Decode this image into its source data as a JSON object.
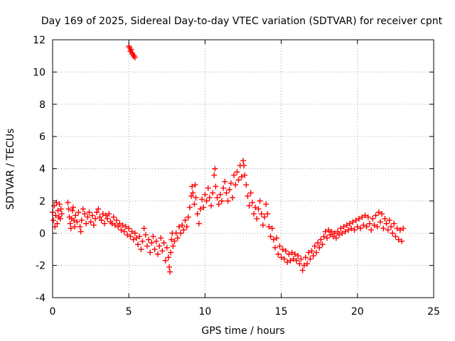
{
  "chart_data": {
    "type": "scatter",
    "title": "Day 169 of 2025, Sidereal Day-to-day VTEC variation (SDTVAR) for receiver cpnt",
    "xlabel": "GPS time / hours",
    "ylabel": "SDTVAR / TECUs",
    "xlim": [
      0,
      25
    ],
    "ylim": [
      -4,
      12
    ],
    "xticks": [
      0,
      5,
      10,
      15,
      20,
      25
    ],
    "yticks": [
      -4,
      -2,
      0,
      2,
      4,
      6,
      8,
      10,
      12
    ],
    "grid": true,
    "marker": "+",
    "colors": {
      "series": "#ff0000",
      "grid": "#a0a0a0",
      "axis": "#000000"
    },
    "series": [
      {
        "name": "SDTVAR",
        "points": [
          [
            0.0,
            1.3
          ],
          [
            0.05,
            0.8
          ],
          [
            0.1,
            1.7
          ],
          [
            0.15,
            0.4
          ],
          [
            0.2,
            1.1
          ],
          [
            0.25,
            1.9
          ],
          [
            0.3,
            0.6
          ],
          [
            0.35,
            1.4
          ],
          [
            0.4,
            1.0
          ],
          [
            0.45,
            1.8
          ],
          [
            0.5,
            0.9
          ],
          [
            0.55,
            1.5
          ],
          [
            0.6,
            1.2
          ],
          [
            1.0,
            1.9
          ],
          [
            1.05,
            1.5
          ],
          [
            1.1,
            1.0
          ],
          [
            1.15,
            0.6
          ],
          [
            1.2,
            0.3
          ],
          [
            1.25,
            0.9
          ],
          [
            1.3,
            1.4
          ],
          [
            1.35,
            1.6
          ],
          [
            1.4,
            0.8
          ],
          [
            1.45,
            0.4
          ],
          [
            1.5,
            1.1
          ],
          [
            1.6,
            0.7
          ],
          [
            1.7,
            1.3
          ],
          [
            1.8,
            0.4
          ],
          [
            1.85,
            0.1
          ],
          [
            1.9,
            0.8
          ],
          [
            2.0,
            1.5
          ],
          [
            2.1,
            1.2
          ],
          [
            2.2,
            0.6
          ],
          [
            2.3,
            1.0
          ],
          [
            2.4,
            1.3
          ],
          [
            2.5,
            0.7
          ],
          [
            2.6,
            1.1
          ],
          [
            2.7,
            0.5
          ],
          [
            2.8,
            0.9
          ],
          [
            2.9,
            1.3
          ],
          [
            3.0,
            1.5
          ],
          [
            3.1,
            1.0
          ],
          [
            3.2,
            0.8
          ],
          [
            3.3,
            1.2
          ],
          [
            3.4,
            0.6
          ],
          [
            3.5,
            1.1
          ],
          [
            3.6,
            0.9
          ],
          [
            3.7,
            1.2
          ],
          [
            3.8,
            0.7
          ],
          [
            3.9,
            0.6
          ],
          [
            4.0,
            1.0
          ],
          [
            4.1,
            0.5
          ],
          [
            4.2,
            0.8
          ],
          [
            4.3,
            0.4
          ],
          [
            4.4,
            0.6
          ],
          [
            4.5,
            0.2
          ],
          [
            4.6,
            0.5
          ],
          [
            4.7,
            0.1
          ],
          [
            4.8,
            0.4
          ],
          [
            4.9,
            -0.1
          ],
          [
            5.0,
            0.3
          ],
          [
            5.1,
            -0.2
          ],
          [
            5.2,
            0.1
          ],
          [
            5.3,
            -0.4
          ],
          [
            5.4,
            0.0
          ],
          [
            5.5,
            -0.3
          ],
          [
            5.6,
            -0.7
          ],
          [
            5.7,
            -0.2
          ],
          [
            5.8,
            -1.0
          ],
          [
            5.9,
            -0.5
          ],
          [
            6.0,
            0.3
          ],
          [
            6.1,
            -0.1
          ],
          [
            6.2,
            -0.8
          ],
          [
            6.3,
            -0.4
          ],
          [
            6.4,
            -1.2
          ],
          [
            6.5,
            -0.6
          ],
          [
            6.6,
            -0.2
          ],
          [
            6.7,
            -1.0
          ],
          [
            6.8,
            -0.5
          ],
          [
            6.9,
            -1.3
          ],
          [
            7.0,
            -0.8
          ],
          [
            7.1,
            -0.3
          ],
          [
            7.2,
            -1.1
          ],
          [
            7.3,
            -0.6
          ],
          [
            7.4,
            -1.7
          ],
          [
            7.5,
            -0.9
          ],
          [
            7.6,
            -1.5
          ],
          [
            7.65,
            -2.1
          ],
          [
            7.7,
            -2.4
          ],
          [
            7.75,
            -1.2
          ],
          [
            7.8,
            -0.4
          ],
          [
            7.85,
            0.0
          ],
          [
            7.9,
            -0.8
          ],
          [
            8.0,
            -0.5
          ],
          [
            8.1,
            0.0
          ],
          [
            8.2,
            -0.3
          ],
          [
            8.3,
            0.4
          ],
          [
            8.4,
            0.0
          ],
          [
            8.5,
            0.5
          ],
          [
            8.6,
            0.2
          ],
          [
            8.7,
            0.8
          ],
          [
            8.8,
            0.4
          ],
          [
            8.9,
            1.0
          ],
          [
            9.0,
            1.6
          ],
          [
            9.1,
            2.3
          ],
          [
            9.15,
            2.9
          ],
          [
            9.2,
            2.5
          ],
          [
            9.3,
            1.8
          ],
          [
            9.35,
            3.0
          ],
          [
            9.4,
            2.2
          ],
          [
            9.5,
            1.2
          ],
          [
            9.6,
            0.6
          ],
          [
            9.7,
            1.5
          ],
          [
            9.8,
            2.1
          ],
          [
            9.9,
            1.6
          ],
          [
            10.0,
            2.4
          ],
          [
            10.1,
            2.0
          ],
          [
            10.2,
            2.8
          ],
          [
            10.3,
            2.2
          ],
          [
            10.4,
            1.7
          ],
          [
            10.5,
            2.5
          ],
          [
            10.6,
            3.6
          ],
          [
            10.65,
            4.0
          ],
          [
            10.7,
            2.9
          ],
          [
            10.8,
            2.2
          ],
          [
            10.9,
            1.8
          ],
          [
            11.0,
            2.4
          ],
          [
            11.1,
            2.0
          ],
          [
            11.2,
            2.8
          ],
          [
            11.3,
            3.2
          ],
          [
            11.4,
            2.5
          ],
          [
            11.5,
            2.0
          ],
          [
            11.6,
            2.7
          ],
          [
            11.7,
            3.1
          ],
          [
            11.8,
            2.2
          ],
          [
            11.9,
            3.6
          ],
          [
            12.0,
            3.0
          ],
          [
            12.1,
            3.8
          ],
          [
            12.2,
            3.3
          ],
          [
            12.3,
            4.2
          ],
          [
            12.4,
            3.5
          ],
          [
            12.5,
            4.5
          ],
          [
            12.55,
            4.2
          ],
          [
            12.6,
            3.6
          ],
          [
            12.7,
            3.0
          ],
          [
            12.8,
            2.3
          ],
          [
            12.9,
            1.7
          ],
          [
            13.0,
            2.5
          ],
          [
            13.1,
            1.9
          ],
          [
            13.2,
            1.2
          ],
          [
            13.3,
            1.6
          ],
          [
            13.4,
            0.9
          ],
          [
            13.5,
            1.5
          ],
          [
            13.6,
            2.0
          ],
          [
            13.7,
            1.2
          ],
          [
            13.8,
            0.5
          ],
          [
            13.9,
            1.0
          ],
          [
            14.0,
            1.8
          ],
          [
            14.1,
            1.2
          ],
          [
            14.2,
            0.4
          ],
          [
            14.3,
            -0.2
          ],
          [
            14.4,
            0.3
          ],
          [
            14.5,
            -0.4
          ],
          [
            14.6,
            -0.9
          ],
          [
            14.7,
            -0.3
          ],
          [
            14.8,
            -1.3
          ],
          [
            14.9,
            -0.8
          ],
          [
            15.0,
            -1.5
          ],
          [
            15.1,
            -1.0
          ],
          [
            15.2,
            -1.6
          ],
          [
            15.3,
            -1.1
          ],
          [
            15.4,
            -1.8
          ],
          [
            15.5,
            -1.3
          ],
          [
            15.6,
            -1.7
          ],
          [
            15.7,
            -1.2
          ],
          [
            15.8,
            -1.6
          ],
          [
            15.9,
            -1.3
          ],
          [
            16.0,
            -1.7
          ],
          [
            16.1,
            -1.4
          ],
          [
            16.2,
            -1.9
          ],
          [
            16.3,
            -1.6
          ],
          [
            16.4,
            -2.3
          ],
          [
            16.5,
            -2.0
          ],
          [
            16.6,
            -1.5
          ],
          [
            16.7,
            -1.9
          ],
          [
            16.8,
            -1.2
          ],
          [
            16.9,
            -1.6
          ],
          [
            17.0,
            -1.1
          ],
          [
            17.1,
            -1.4
          ],
          [
            17.2,
            -0.8
          ],
          [
            17.3,
            -1.2
          ],
          [
            17.4,
            -0.6
          ],
          [
            17.5,
            -0.9
          ],
          [
            17.6,
            -0.4
          ],
          [
            17.7,
            -0.7
          ],
          [
            17.8,
            -0.2
          ],
          [
            17.9,
            0.1
          ],
          [
            18.0,
            -0.3
          ],
          [
            18.1,
            0.2
          ],
          [
            18.2,
            -0.1
          ],
          [
            18.3,
            0.1
          ],
          [
            18.4,
            -0.2
          ],
          [
            18.5,
            0.0
          ],
          [
            18.6,
            -0.3
          ],
          [
            18.7,
            0.1
          ],
          [
            18.8,
            -0.1
          ],
          [
            18.9,
            0.3
          ],
          [
            19.0,
            0.0
          ],
          [
            19.1,
            0.4
          ],
          [
            19.2,
            0.1
          ],
          [
            19.3,
            0.5
          ],
          [
            19.4,
            0.2
          ],
          [
            19.5,
            0.6
          ],
          [
            19.6,
            0.3
          ],
          [
            19.7,
            0.7
          ],
          [
            19.8,
            0.2
          ],
          [
            19.9,
            0.8
          ],
          [
            20.0,
            0.4
          ],
          [
            20.1,
            0.9
          ],
          [
            20.2,
            0.3
          ],
          [
            20.3,
            1.0
          ],
          [
            20.4,
            0.5
          ],
          [
            20.5,
            1.1
          ],
          [
            20.6,
            0.4
          ],
          [
            20.7,
            1.0
          ],
          [
            20.8,
            0.6
          ],
          [
            20.9,
            0.2
          ],
          [
            21.0,
            0.9
          ],
          [
            21.1,
            0.5
          ],
          [
            21.2,
            1.1
          ],
          [
            21.3,
            0.4
          ],
          [
            21.4,
            1.3
          ],
          [
            21.5,
            0.7
          ],
          [
            21.6,
            1.2
          ],
          [
            21.7,
            0.3
          ],
          [
            21.8,
            0.9
          ],
          [
            21.9,
            0.6
          ],
          [
            22.0,
            0.2
          ],
          [
            22.1,
            0.8
          ],
          [
            22.2,
            0.4
          ],
          [
            22.3,
            0.0
          ],
          [
            22.4,
            0.6
          ],
          [
            22.5,
            -0.2
          ],
          [
            22.6,
            0.3
          ],
          [
            22.7,
            -0.4
          ],
          [
            22.8,
            0.2
          ],
          [
            22.9,
            -0.5
          ],
          [
            23.0,
            0.3
          ],
          [
            5.0,
            11.6
          ],
          [
            5.05,
            11.5
          ],
          [
            5.1,
            11.3
          ],
          [
            5.15,
            11.4
          ],
          [
            5.2,
            11.2
          ],
          [
            5.25,
            11.1
          ],
          [
            5.3,
            11.0
          ],
          [
            5.35,
            11.0
          ],
          [
            5.4,
            10.9
          ]
        ]
      }
    ]
  }
}
